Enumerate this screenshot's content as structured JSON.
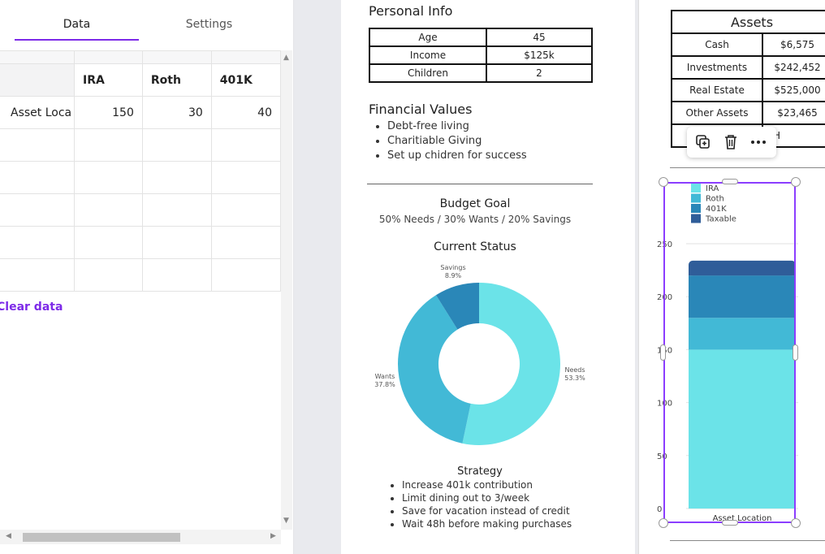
{
  "panel": {
    "tabs": [
      {
        "label": "Data"
      },
      {
        "label": "Settings"
      }
    ],
    "grid": {
      "columns": [
        "IRA",
        "Roth",
        "401K"
      ],
      "rows": [
        {
          "label": "Asset Loca",
          "values": [
            "150",
            "30",
            "40"
          ]
        }
      ]
    },
    "clear_label": "Clear data"
  },
  "personal_info": {
    "title": "Personal Info",
    "rows": [
      {
        "label": "Age",
        "value": "45"
      },
      {
        "label": "Income",
        "value": "$125k"
      },
      {
        "label": "Children",
        "value": "2"
      }
    ]
  },
  "financial_values": {
    "title": "Financial Values",
    "items": [
      "Debt-free living",
      "Charitiable Giving",
      "Set up chidren for success"
    ]
  },
  "budget": {
    "title": "Budget Goal",
    "subtitle": "50% Needs / 30% Wants / 20% Savings",
    "status_title": "Current Status"
  },
  "strategy": {
    "title": "Strategy",
    "items": [
      "Increase 401k contribution",
      "Limit dining out to 3/week",
      "Save for vacation instead of credit",
      "Wait 48h before making purchases"
    ]
  },
  "assets": {
    "title": "Assets",
    "rows": [
      {
        "label": "Cash",
        "value": "$6,575"
      },
      {
        "label": "Investments",
        "value": "$242,452"
      },
      {
        "label": "Real Estate",
        "value": "$525,000"
      },
      {
        "label": "Other Assets",
        "value": "$23,465"
      }
    ],
    "partial_row_text": "H"
  },
  "toolbar": {
    "icons": [
      "duplicate-icon",
      "trash-icon",
      "more-icon"
    ]
  },
  "chart_data": [
    {
      "type": "pie",
      "title": "Current Status",
      "donut": true,
      "categories": [
        "Needs",
        "Wants",
        "Savings"
      ],
      "values": [
        53.3,
        37.8,
        8.9
      ],
      "labels": [
        "53.3%",
        "37.8%",
        "8.9%"
      ],
      "colors": [
        "#6be3e8",
        "#42b9d6",
        "#2a87b8"
      ]
    },
    {
      "type": "bar",
      "stacked": true,
      "categories": [
        "Asset Location"
      ],
      "series": [
        {
          "name": "IRA",
          "values": [
            150
          ],
          "color": "#6be3e8"
        },
        {
          "name": "Roth",
          "values": [
            30
          ],
          "color": "#42b9d6"
        },
        {
          "name": "401K",
          "values": [
            40
          ],
          "color": "#2a87b8"
        },
        {
          "name": "Taxable",
          "values": [
            14
          ],
          "color": "#2f5d99"
        }
      ],
      "yticks": [
        "0",
        "50",
        "100",
        "150",
        "200",
        "250"
      ],
      "ylim": [
        0,
        250
      ],
      "legend": "top-left"
    }
  ]
}
